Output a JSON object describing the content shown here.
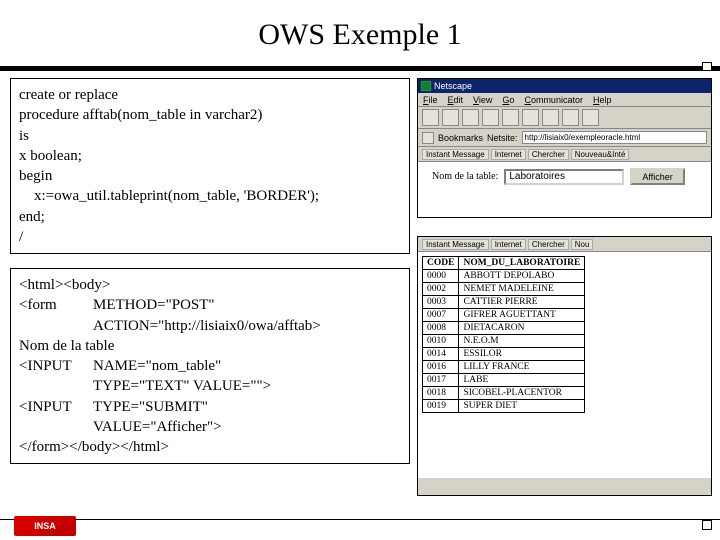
{
  "title": "OWS Exemple 1",
  "codebox": {
    "lines": [
      "create or replace",
      "procedure afftab(nom_table in varchar2)",
      "is",
      "x boolean;",
      "begin",
      "    x:=owa_util.tableprint(nom_table, 'BORDER');",
      "end;",
      "/"
    ]
  },
  "htmlbox": {
    "l1": "<html><body>",
    "r1a": "<form",
    "r1b": "METHOD=\"POST\"",
    "r2": "ACTION=\"http://lisiaix0/owa/afftab>",
    "l3": "Nom de la table",
    "r3a": "<INPUT",
    "r3b": "NAME=\"nom_table\"",
    "r4": "TYPE=\"TEXT\" VALUE=\"\">",
    "r5a": "<INPUT",
    "r5b": "TYPE=\"SUBMIT\"",
    "r6": "VALUE=\"Afficher\">",
    "l7": "</form></body></html>"
  },
  "browser1": {
    "title": "Netscape",
    "menu": [
      "File",
      "Edit",
      "View",
      "Go",
      "Communicator",
      "Help"
    ],
    "bookmarks_label": "Bookmarks",
    "netsite_label": "Netsite:",
    "address": "http://lisiaix0/exempleoracle.html",
    "quicklinks": [
      "Instant Message",
      "Internet",
      "Chercher",
      "Nouveau&Inté"
    ],
    "form_label": "Nom de la table:",
    "form_value": "Laboratoires",
    "form_button": "Afficher"
  },
  "browser2": {
    "quicklinks": [
      "Instant Message",
      "Internet",
      "Chercher",
      "Nou"
    ],
    "table": {
      "columns": [
        "CODE",
        "NOM_DU_LABORATOIRE"
      ],
      "rows": [
        [
          "0000",
          "ABBOTT DEPOLABO"
        ],
        [
          "0002",
          "NEMET MADELEINE"
        ],
        [
          "0003",
          "CATTIER PIERRE"
        ],
        [
          "0007",
          "GIFRER AGUETTANT"
        ],
        [
          "0008",
          "DIETACARON"
        ],
        [
          "0010",
          "N.E.O.M"
        ],
        [
          "0014",
          "ESSILOR"
        ],
        [
          "0016",
          "LILLY FRANCE"
        ],
        [
          "0017",
          "LABE"
        ],
        [
          "0018",
          "SICOBEL-PLACENTOR"
        ],
        [
          "0019",
          "SUPER DIET"
        ]
      ]
    }
  },
  "logo_text": "INSA"
}
